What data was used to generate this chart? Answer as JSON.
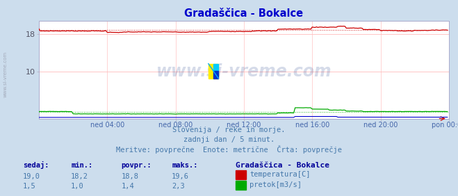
{
  "title": "Gradaščica - Bokalce",
  "title_color": "#0000cc",
  "fig_bg_color": "#ccdded",
  "plot_bg_color": "#ffffff",
  "xlabel_ticks": [
    "ned 04:00",
    "ned 08:00",
    "ned 12:00",
    "ned 16:00",
    "ned 20:00",
    "pon 00:00"
  ],
  "yticks": [
    10,
    18
  ],
  "ylim": [
    0,
    20.8
  ],
  "temp_color": "#cc0000",
  "flow_color": "#00aa00",
  "height_color": "#0000cc",
  "grid_h_color": "#ffbbbb",
  "grid_v_color": "#ffcccc",
  "watermark": "www.si-vreme.com",
  "watermark_color": "#1a3a8a",
  "watermark_alpha": 0.18,
  "subtitle1": "Slovenija / reke in morje.",
  "subtitle2": "zadnji dan / 5 minut.",
  "subtitle3": "Meritve: povprečne  Enote: metrične  Črta: povprečje",
  "subtitle_color": "#4477aa",
  "table_header": [
    "sedaj:",
    "min.:",
    "povpr.:",
    "maks.:"
  ],
  "table_header_color": "#000099",
  "table_vals_temp": [
    "19,0",
    "18,2",
    "18,8",
    "19,6"
  ],
  "table_vals_flow": [
    "1,5",
    "1,0",
    "1,4",
    "2,3"
  ],
  "legend_title": "Gradaščica - Bokalce",
  "legend_title_color": "#000099",
  "legend_items": [
    "temperatura[C]",
    "pretok[m3/s]"
  ],
  "legend_colors": [
    "#cc0000",
    "#00aa00"
  ],
  "n_points": 288,
  "temp_avg": 18.8,
  "flow_avg": 1.4,
  "left_label_text": "www.si-vreme.com"
}
